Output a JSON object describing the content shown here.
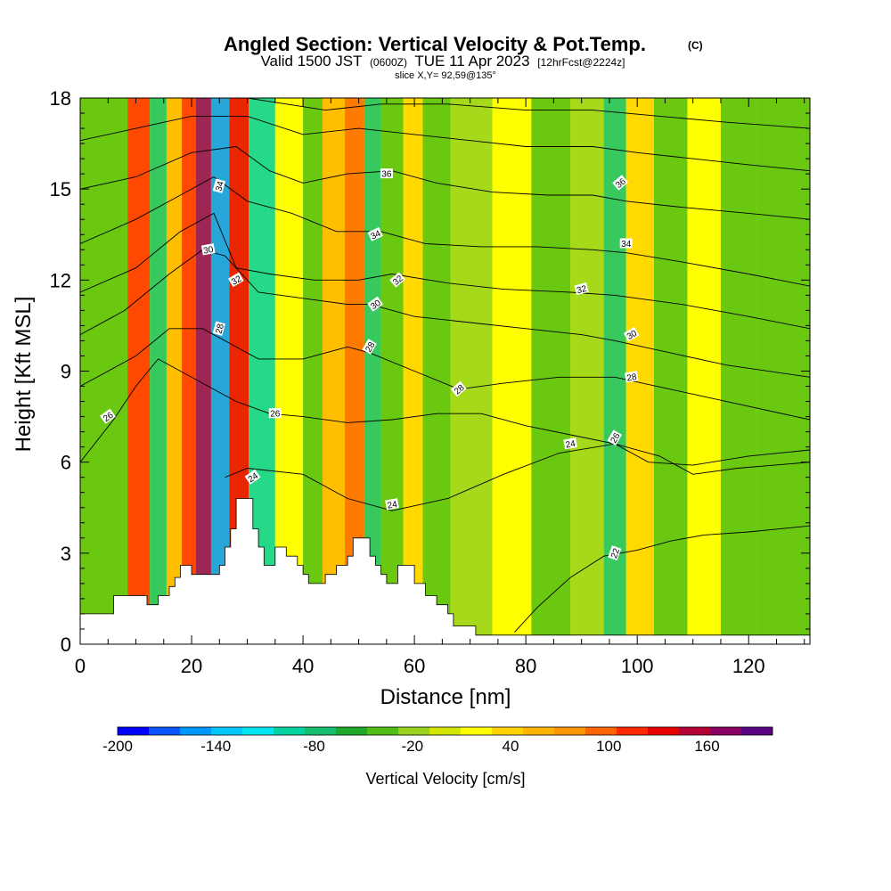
{
  "chart_data": {
    "type": "heatmap",
    "title": "Angled Section: Vertical Velocity & Pot.Temp.",
    "title_mark": "(C)",
    "subtitle_parts": [
      "Valid 1500 JST",
      "(0600Z)",
      "TUE 11 Apr 2023",
      "[12hrFcst@2224z]"
    ],
    "subtitle2": "slice X,Y= 92,59@135°",
    "xlabel": "Distance [nm]",
    "ylabel": "Height [Kft MSL]",
    "xlim": [
      0,
      131
    ],
    "ylim": [
      0,
      18
    ],
    "xticks": [
      0,
      20,
      40,
      60,
      80,
      100,
      120
    ],
    "yticks": [
      0,
      3,
      6,
      9,
      12,
      15,
      18
    ],
    "grid": false,
    "colorbar": {
      "title": "Vertical Velocity [cm/s]",
      "min": -200,
      "max": 200,
      "step": 20,
      "tick_labels": [
        -200,
        -140,
        -80,
        -20,
        40,
        100,
        160
      ],
      "colors": [
        "#0000ff",
        "#0a55ff",
        "#0096ff",
        "#00c8ff",
        "#00e6f0",
        "#00d2a0",
        "#14be6e",
        "#1eaa28",
        "#50be14",
        "#96d21e",
        "#d2e600",
        "#ffff00",
        "#ffd200",
        "#ffb400",
        "#ff9600",
        "#ff6400",
        "#ff2800",
        "#e60000",
        "#b40032",
        "#8c0064",
        "#5a0082"
      ]
    },
    "velocity_columns": [
      {
        "x": 6,
        "value": -30
      },
      {
        "x": 11,
        "value": 120
      },
      {
        "x": 14,
        "value": -80
      },
      {
        "x": 17,
        "value": 60
      },
      {
        "x": 19.5,
        "value": 130
      },
      {
        "x": 22,
        "value": 190
      },
      {
        "x": 25,
        "value": -150
      },
      {
        "x": 28.5,
        "value": 150
      },
      {
        "x": 32,
        "value": -90
      },
      {
        "x": 38,
        "value": 30
      },
      {
        "x": 42,
        "value": -40
      },
      {
        "x": 45,
        "value": 60
      },
      {
        "x": 50,
        "value": 110
      },
      {
        "x": 52,
        "value": -80
      },
      {
        "x": 56,
        "value": -30
      },
      {
        "x": 60,
        "value": 40
      },
      {
        "x": 63,
        "value": -40
      },
      {
        "x": 70,
        "value": -20
      },
      {
        "x": 78,
        "value": 30
      },
      {
        "x": 84,
        "value": -30
      },
      {
        "x": 92,
        "value": -20
      },
      {
        "x": 96,
        "value": -70
      },
      {
        "x": 100,
        "value": 40
      },
      {
        "x": 106,
        "value": -30
      },
      {
        "x": 112,
        "value": 30
      },
      {
        "x": 118,
        "value": -40
      },
      {
        "x": 125,
        "value": -30
      }
    ],
    "terrain": [
      [
        0,
        1
      ],
      [
        6,
        1
      ],
      [
        6,
        1.6
      ],
      [
        12,
        1.6
      ],
      [
        12,
        1.3
      ],
      [
        14,
        1.3
      ],
      [
        14,
        1.6
      ],
      [
        16,
        1.6
      ],
      [
        16,
        1.9
      ],
      [
        17,
        1.9
      ],
      [
        17,
        2.2
      ],
      [
        18,
        2.2
      ],
      [
        18,
        2.6
      ],
      [
        20,
        2.6
      ],
      [
        20,
        2.3
      ],
      [
        22,
        2.3
      ],
      [
        22,
        2.3
      ],
      [
        25,
        2.3
      ],
      [
        25,
        2.6
      ],
      [
        26,
        2.6
      ],
      [
        26,
        3.2
      ],
      [
        27,
        3.2
      ],
      [
        27,
        3.8
      ],
      [
        28,
        3.8
      ],
      [
        28,
        4.8
      ],
      [
        31,
        4.8
      ],
      [
        31,
        3.8
      ],
      [
        32,
        3.8
      ],
      [
        32,
        3.2
      ],
      [
        33,
        3.2
      ],
      [
        33,
        2.6
      ],
      [
        35,
        2.6
      ],
      [
        35,
        3.2
      ],
      [
        37,
        3.2
      ],
      [
        37,
        2.9
      ],
      [
        39,
        2.9
      ],
      [
        39,
        2.6
      ],
      [
        40,
        2.6
      ],
      [
        40,
        2.3
      ],
      [
        41,
        2.3
      ],
      [
        41,
        2.0
      ],
      [
        44,
        2.0
      ],
      [
        44,
        2.3
      ],
      [
        46,
        2.3
      ],
      [
        46,
        2.6
      ],
      [
        48,
        2.6
      ],
      [
        48,
        2.9
      ],
      [
        49,
        2.9
      ],
      [
        49,
        3.5
      ],
      [
        52,
        3.5
      ],
      [
        52,
        2.9
      ],
      [
        53,
        2.9
      ],
      [
        53,
        2.6
      ],
      [
        54,
        2.6
      ],
      [
        54,
        2.3
      ],
      [
        55,
        2.3
      ],
      [
        55,
        2.0
      ],
      [
        57,
        2.0
      ],
      [
        57,
        2.6
      ],
      [
        60,
        2.6
      ],
      [
        60,
        2.0
      ],
      [
        62,
        2.0
      ],
      [
        62,
        1.6
      ],
      [
        64,
        1.6
      ],
      [
        64,
        1.3
      ],
      [
        66,
        1.3
      ],
      [
        66,
        1.0
      ],
      [
        67,
        1.0
      ],
      [
        67,
        0.6
      ],
      [
        71,
        0.6
      ],
      [
        71,
        0.3
      ],
      [
        131,
        0.3
      ]
    ],
    "theta_isentropes": [
      {
        "label": "22",
        "points": [
          [
            78,
            0.4
          ],
          [
            82,
            1.2
          ],
          [
            88,
            2.2
          ],
          [
            94,
            2.9
          ],
          [
            100,
            3.1
          ],
          [
            106,
            3.4
          ],
          [
            112,
            3.6
          ],
          [
            120,
            3.7
          ],
          [
            131,
            3.9
          ]
        ]
      },
      {
        "label": "24",
        "points": [
          [
            26,
            5.5
          ],
          [
            30,
            5.8
          ],
          [
            40,
            5.6
          ],
          [
            48,
            4.8
          ],
          [
            56,
            4.4
          ],
          [
            66,
            4.8
          ],
          [
            76,
            5.6
          ],
          [
            86,
            6.3
          ],
          [
            96,
            6.6
          ],
          [
            104,
            6.2
          ],
          [
            110,
            5.6
          ],
          [
            118,
            5.8
          ],
          [
            131,
            6.0
          ]
        ]
      },
      {
        "label": "26",
        "points": [
          [
            0,
            6.0
          ],
          [
            6,
            7.4
          ],
          [
            10,
            8.5
          ],
          [
            14,
            9.4
          ],
          [
            18,
            9.0
          ],
          [
            22,
            8.6
          ],
          [
            28,
            8.0
          ],
          [
            34,
            7.6
          ],
          [
            40,
            7.5
          ],
          [
            48,
            7.3
          ],
          [
            56,
            7.4
          ],
          [
            64,
            7.6
          ],
          [
            72,
            7.6
          ],
          [
            80,
            7.2
          ],
          [
            88,
            6.9
          ],
          [
            96,
            6.6
          ],
          [
            102,
            6.0
          ],
          [
            110,
            5.9
          ],
          [
            120,
            6.2
          ],
          [
            131,
            6.4
          ]
        ]
      },
      {
        "label": "28",
        "points": [
          [
            0,
            8.5
          ],
          [
            10,
            9.5
          ],
          [
            16,
            10.4
          ],
          [
            22,
            10.4
          ],
          [
            26,
            10.0
          ],
          [
            32,
            9.4
          ],
          [
            40,
            9.4
          ],
          [
            48,
            9.8
          ],
          [
            52,
            9.6
          ],
          [
            60,
            9.0
          ],
          [
            68,
            8.4
          ],
          [
            76,
            8.6
          ],
          [
            86,
            8.8
          ],
          [
            96,
            8.8
          ],
          [
            106,
            8.4
          ],
          [
            116,
            8.0
          ],
          [
            131,
            7.4
          ]
        ]
      },
      {
        "label": "30",
        "points": [
          [
            0,
            10.2
          ],
          [
            8,
            11.0
          ],
          [
            16,
            12.2
          ],
          [
            22,
            13.0
          ],
          [
            26,
            12.8
          ],
          [
            32,
            11.6
          ],
          [
            40,
            11.4
          ],
          [
            48,
            11.2
          ],
          [
            52,
            11.2
          ],
          [
            60,
            10.8
          ],
          [
            70,
            10.6
          ],
          [
            80,
            10.4
          ],
          [
            90,
            10.2
          ],
          [
            96,
            10.0
          ],
          [
            106,
            9.6
          ],
          [
            116,
            9.2
          ],
          [
            131,
            8.8
          ]
        ]
      },
      {
        "label": "32",
        "points": [
          [
            0,
            11.6
          ],
          [
            10,
            12.4
          ],
          [
            18,
            13.6
          ],
          [
            24,
            14.2
          ],
          [
            28,
            12.4
          ],
          [
            34,
            12.2
          ],
          [
            42,
            12.0
          ],
          [
            50,
            12.0
          ],
          [
            56,
            12.2
          ],
          [
            66,
            11.9
          ],
          [
            76,
            11.7
          ],
          [
            88,
            11.6
          ],
          [
            96,
            11.5
          ],
          [
            108,
            11.2
          ],
          [
            120,
            10.8
          ],
          [
            131,
            10.4
          ]
        ]
      },
      {
        "label": "34",
        "points": [
          [
            0,
            13.2
          ],
          [
            10,
            14.0
          ],
          [
            18,
            14.8
          ],
          [
            24,
            15.4
          ],
          [
            30,
            14.6
          ],
          [
            38,
            14.2
          ],
          [
            46,
            13.6
          ],
          [
            54,
            13.6
          ],
          [
            62,
            13.2
          ],
          [
            72,
            13.1
          ],
          [
            82,
            13.1
          ],
          [
            92,
            13.0
          ],
          [
            98,
            12.9
          ],
          [
            108,
            12.6
          ],
          [
            120,
            12.2
          ],
          [
            131,
            11.8
          ]
        ]
      },
      {
        "label": "36",
        "points": [
          [
            0,
            15.0
          ],
          [
            10,
            15.4
          ],
          [
            20,
            16.2
          ],
          [
            28,
            16.4
          ],
          [
            34,
            15.6
          ],
          [
            40,
            15.2
          ],
          [
            48,
            15.5
          ],
          [
            56,
            15.6
          ],
          [
            64,
            15.2
          ],
          [
            74,
            14.9
          ],
          [
            84,
            14.8
          ],
          [
            92,
            14.8
          ],
          [
            98,
            14.6
          ],
          [
            108,
            14.4
          ],
          [
            120,
            14.2
          ],
          [
            131,
            14.0
          ]
        ]
      },
      {
        "label": "",
        "points": [
          [
            0,
            16.6
          ],
          [
            10,
            17.0
          ],
          [
            20,
            17.4
          ],
          [
            30,
            17.4
          ],
          [
            40,
            16.8
          ],
          [
            50,
            17.0
          ],
          [
            60,
            16.8
          ],
          [
            70,
            16.6
          ],
          [
            80,
            16.4
          ],
          [
            92,
            16.4
          ],
          [
            100,
            16.2
          ],
          [
            110,
            16.0
          ],
          [
            120,
            15.8
          ],
          [
            131,
            15.6
          ]
        ]
      },
      {
        "label": "",
        "points": [
          [
            30,
            18.0
          ],
          [
            44,
            17.6
          ],
          [
            54,
            17.8
          ],
          [
            66,
            17.8
          ],
          [
            80,
            17.6
          ],
          [
            92,
            17.6
          ],
          [
            104,
            17.4
          ],
          [
            116,
            17.2
          ],
          [
            131,
            17.0
          ]
        ]
      }
    ],
    "contour_labels": [
      {
        "text": "26",
        "x": 5,
        "y": 7.5,
        "rot": -35
      },
      {
        "text": "26",
        "x": 35,
        "y": 7.6,
        "rot": 0
      },
      {
        "text": "24",
        "x": 31,
        "y": 5.5,
        "rot": -35
      },
      {
        "text": "24",
        "x": 56,
        "y": 4.6,
        "rot": -10
      },
      {
        "text": "24",
        "x": 88,
        "y": 6.6,
        "rot": -10
      },
      {
        "text": "26",
        "x": 96,
        "y": 6.8,
        "rot": -60
      },
      {
        "text": "22",
        "x": 96,
        "y": 3.0,
        "rot": -70
      },
      {
        "text": "28",
        "x": 68,
        "y": 8.4,
        "rot": -40
      },
      {
        "text": "28",
        "x": 52,
        "y": 9.8,
        "rot": -60
      },
      {
        "text": "28",
        "x": 25,
        "y": 10.4,
        "rot": -75
      },
      {
        "text": "28",
        "x": 99,
        "y": 8.8,
        "rot": -10
      },
      {
        "text": "30",
        "x": 53,
        "y": 11.2,
        "rot": -35
      },
      {
        "text": "30",
        "x": 23,
        "y": 13.0,
        "rot": -10
      },
      {
        "text": "30",
        "x": 99,
        "y": 10.2,
        "rot": -30
      },
      {
        "text": "32",
        "x": 28,
        "y": 12.0,
        "rot": -30
      },
      {
        "text": "32",
        "x": 57,
        "y": 12.0,
        "rot": -40
      },
      {
        "text": "32",
        "x": 90,
        "y": 11.7,
        "rot": -15
      },
      {
        "text": "34",
        "x": 25,
        "y": 15.1,
        "rot": -75
      },
      {
        "text": "34",
        "x": 53,
        "y": 13.5,
        "rot": -25
      },
      {
        "text": "34",
        "x": 98,
        "y": 13.2,
        "rot": 0
      },
      {
        "text": "36",
        "x": 55,
        "y": 15.5,
        "rot": 0
      },
      {
        "text": "36",
        "x": 97,
        "y": 15.2,
        "rot": -40
      }
    ]
  }
}
